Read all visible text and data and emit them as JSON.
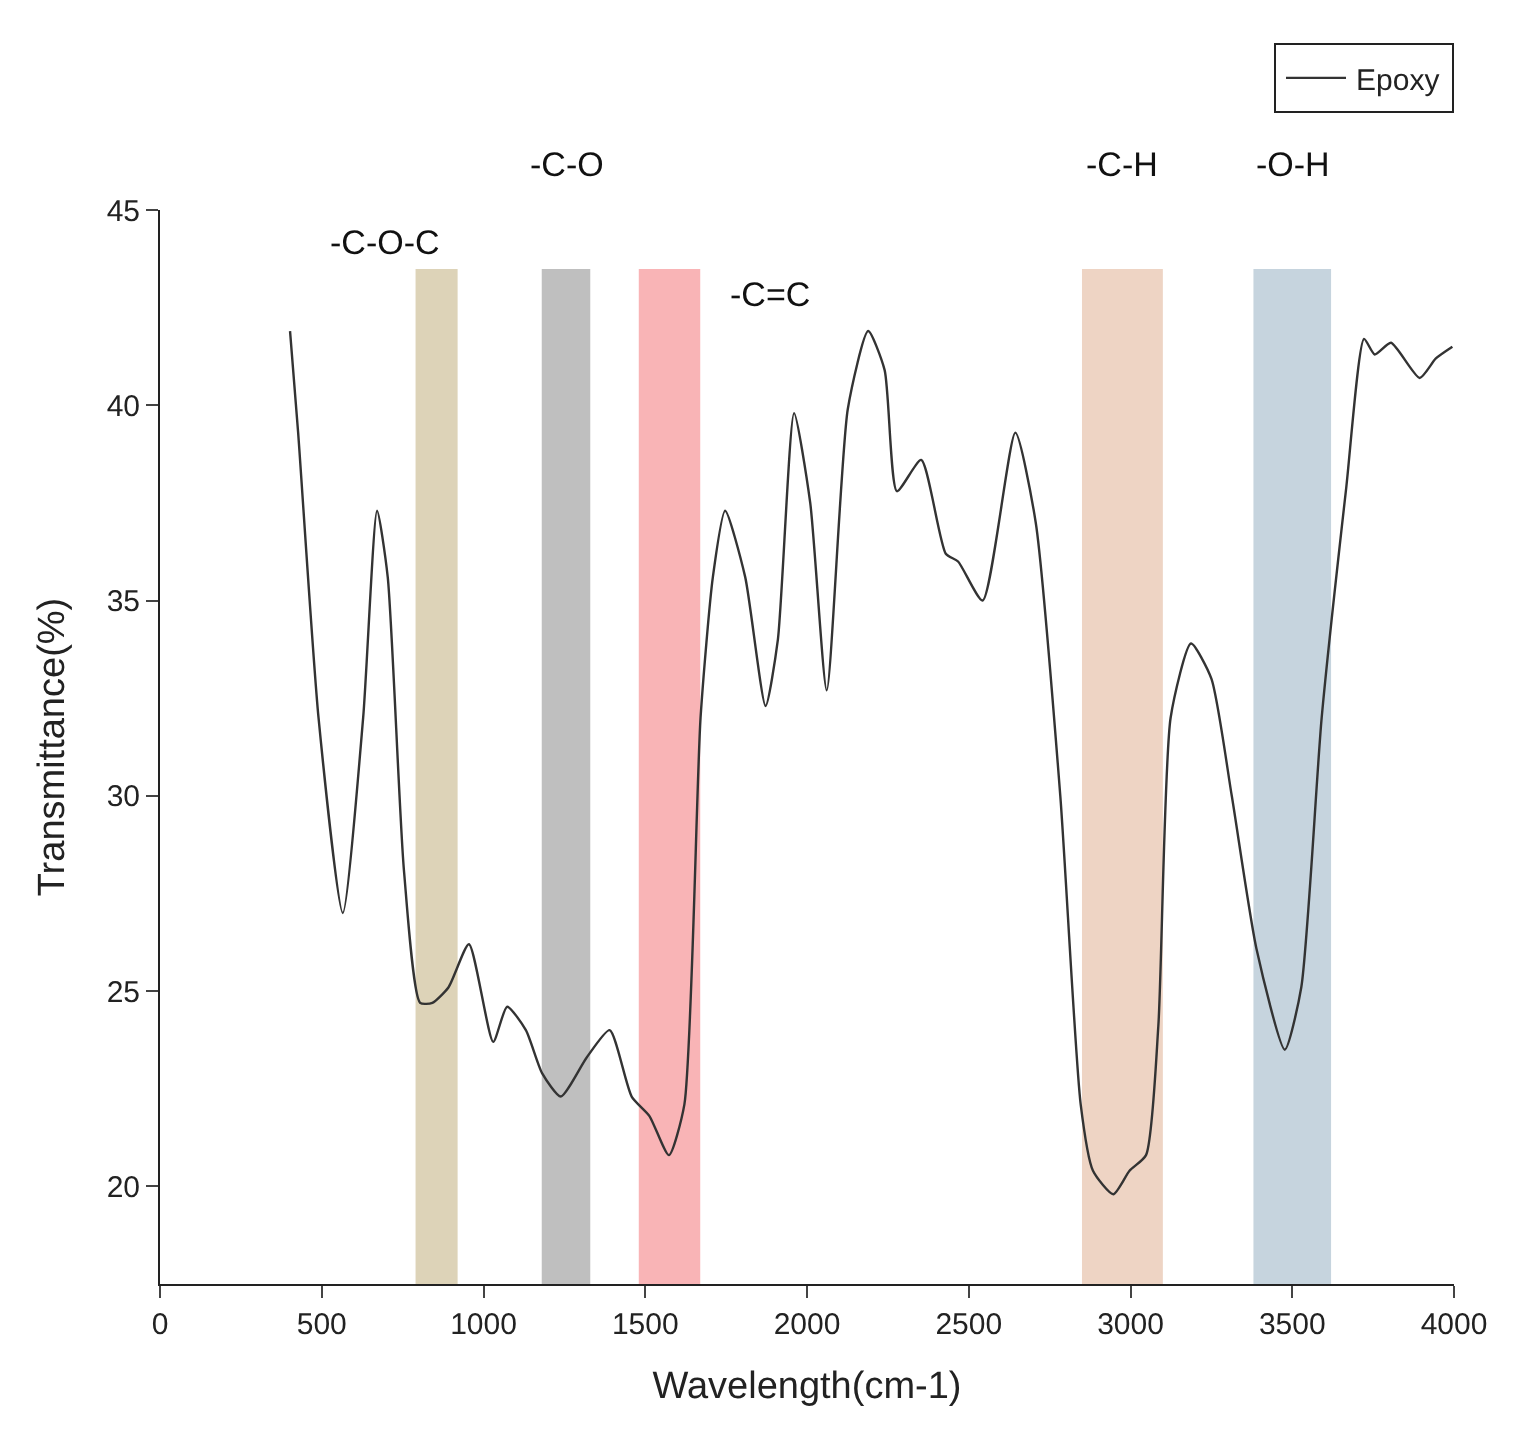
{
  "chart_data": {
    "type": "line",
    "xlabel": "Wavelength(cm-1)",
    "ylabel": "Transmittance(%)",
    "series": [
      {
        "name": "Epoxy",
        "color": "#333333",
        "x": [
          402,
          427,
          490,
          565,
          628,
          671,
          704,
          754,
          804,
          842,
          892,
          955,
          1030,
          1073,
          1131,
          1181,
          1239,
          1319,
          1390,
          1458,
          1513,
          1573,
          1621,
          1671,
          1709,
          1747,
          1809,
          1872,
          1910,
          1960,
          2010,
          2061,
          2126,
          2189,
          2240,
          2278,
          2353,
          2429,
          2467,
          2543,
          2644,
          2707,
          2783,
          2846,
          2884,
          2947,
          2997,
          3048,
          3086,
          3124,
          3187,
          3250,
          3313,
          3389,
          3477,
          3528,
          3591,
          3667,
          3722,
          3755,
          3805,
          3894,
          3944,
          3995
        ],
        "values": [
          41.9,
          39.3,
          32.0,
          27.0,
          32.0,
          37.3,
          35.6,
          28.1,
          24.7,
          24.7,
          25.1,
          26.2,
          23.7,
          24.6,
          24.0,
          22.9,
          22.3,
          23.3,
          24.0,
          22.3,
          21.8,
          20.8,
          22.1,
          32.0,
          35.6,
          37.3,
          35.6,
          32.3,
          34.0,
          39.8,
          37.5,
          32.7,
          39.9,
          41.9,
          40.9,
          37.8,
          38.6,
          36.2,
          36.0,
          35.0,
          39.3,
          37.0,
          30.0,
          22.1,
          20.4,
          19.8,
          20.4,
          20.8,
          24.1,
          32.0,
          33.9,
          33.0,
          30.0,
          26.1,
          23.5,
          25.1,
          32.0,
          37.9,
          41.7,
          41.3,
          41.6,
          40.7,
          41.2,
          41.5
        ]
      }
    ],
    "bands": [
      {
        "axis": "x",
        "from": 790,
        "to": 920,
        "label": "-C-O-C",
        "color": "#ddd3b8"
      },
      {
        "axis": "x",
        "from": 1180,
        "to": 1330,
        "label": "-C-O",
        "color": "#bfbfbf"
      },
      {
        "axis": "x",
        "from": 1480,
        "to": 1670,
        "label": "-C=C",
        "color": "#f9b4b6"
      },
      {
        "axis": "x",
        "from": 2850,
        "to": 3100,
        "label": "-C-H",
        "color": "#eed4c4"
      },
      {
        "axis": "x",
        "from": 3380,
        "to": 3620,
        "label": "-O-H",
        "color": "#c6d4de"
      }
    ],
    "xlim": [
      0,
      4000
    ],
    "xticks": [
      0,
      500,
      1000,
      1500,
      2000,
      2500,
      3000,
      3500,
      4000
    ],
    "ylim": [
      17.5,
      45
    ],
    "yticks": [
      20,
      25,
      30,
      35,
      40,
      45
    ],
    "grid": false,
    "legend": "top right",
    "marker": "none",
    "line_style": "solid"
  }
}
